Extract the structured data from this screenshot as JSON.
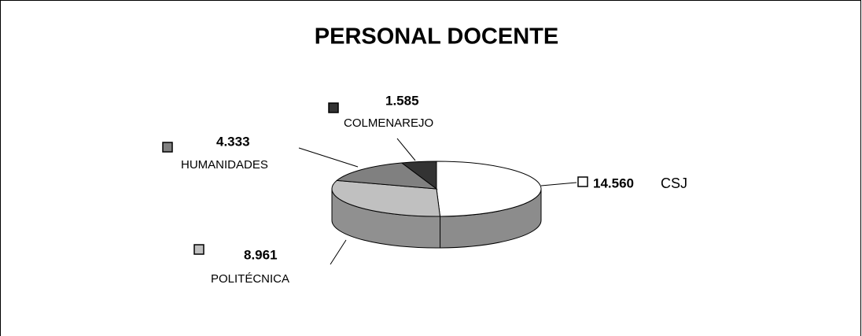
{
  "chart_data": {
    "type": "pie",
    "title": "PERSONAL DOCENTE",
    "categories": [
      "CSJ",
      "POLITÉCNICA",
      "HUMANIDADES",
      "COLMENAREJO"
    ],
    "values": [
      14560,
      8961,
      4333,
      1585
    ],
    "value_labels": [
      "14.560",
      "8.961",
      "4.333",
      "1.585"
    ],
    "colors": [
      "#ffffff",
      "#c0c0c0",
      "#808080",
      "#333333"
    ]
  }
}
